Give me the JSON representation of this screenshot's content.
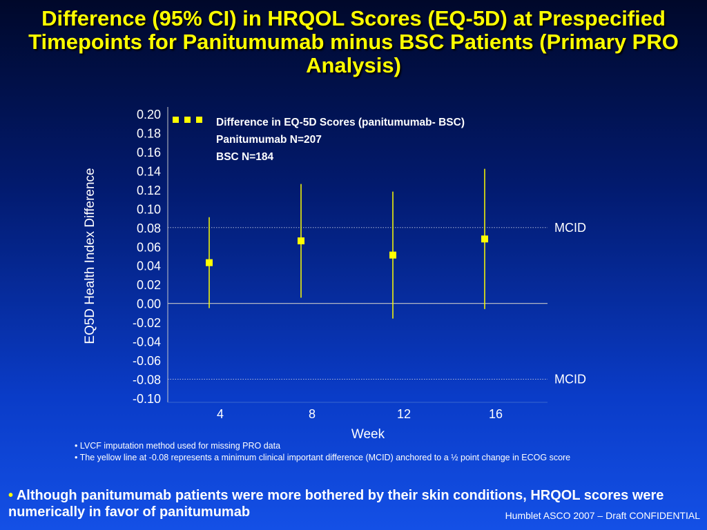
{
  "title": "Difference (95% CI) in HRQOL Scores (EQ-5D) at Prespecified Timepoints for Panitumumab minus BSC Patients (Primary PRO Analysis)",
  "colors": {
    "accent": "#ffff00",
    "text": "#ffffff",
    "axis": "#c8c8c8"
  },
  "chart_data": {
    "type": "scatter",
    "xlabel": "Week",
    "ylabel": "EQ5D Health Index Difference",
    "ylim": [
      -0.1,
      0.2
    ],
    "yticks": [
      "0.20",
      "0.18",
      "0.16",
      "0.14",
      "0.12",
      "0.10",
      "0.08",
      "0.06",
      "0.04",
      "0.02",
      "0.00",
      "-0.02",
      "-0.04",
      "-0.06",
      "-0.08",
      "-0.10"
    ],
    "categories": [
      "4",
      "8",
      "12",
      "16"
    ],
    "series": [
      {
        "name": "Difference in EQ-5D Scores (panitumumab- BSC)",
        "values": [
          0.043,
          0.066,
          0.051,
          0.068
        ],
        "ci_low": [
          -0.005,
          0.006,
          -0.016,
          -0.006
        ],
        "ci_high": [
          0.091,
          0.126,
          0.118,
          0.142
        ]
      }
    ],
    "legend": {
      "position": "top",
      "lines": [
        "Difference in EQ-5D Scores (panitumumab- BSC)",
        "Panitumumab N=207",
        "BSC N=184"
      ]
    },
    "reference_lines": [
      {
        "y": 0.08,
        "label": "MCID"
      },
      {
        "y": -0.08,
        "label": "MCID"
      }
    ]
  },
  "notes": [
    "• LVCF imputation method used for missing PRO data",
    "• The yellow line at -0.08 represents a minimum clinical important difference (MCID) anchored to a ½ point change in ECOG score"
  ],
  "bullet": {
    "marker": "•",
    "text": "Although panitumumab patients were more bothered by their skin conditions, HRQOL scores were numerically in favor of panitumumab"
  },
  "footer": "Humblet ASCO 2007 – Draft  CONFIDENTIAL"
}
